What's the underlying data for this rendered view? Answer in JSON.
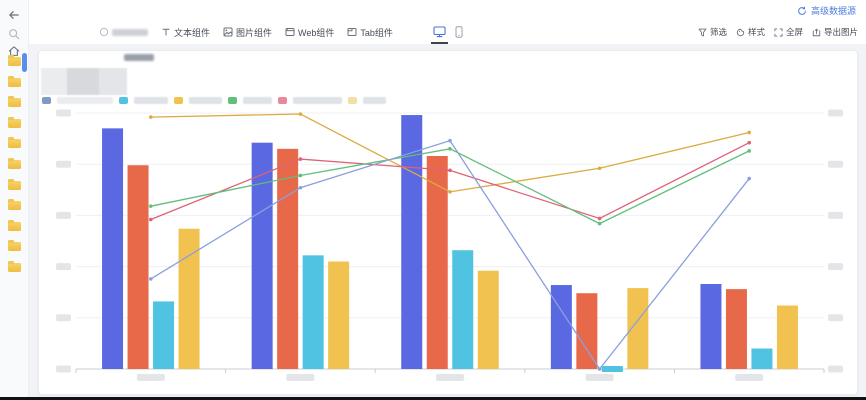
{
  "topbar": {
    "datasource_link": {
      "label": "高级数据源",
      "color": "#4c7bdf"
    }
  },
  "toolbar": {
    "components": [
      {
        "name": "censored-component",
        "label": "",
        "censored": true
      },
      {
        "name": "text-component",
        "label": "文本组件"
      },
      {
        "name": "image-component",
        "label": "图片组件"
      },
      {
        "name": "web-component",
        "label": "Web组件"
      },
      {
        "name": "tab-component",
        "label": "Tab组件"
      }
    ],
    "devices": [
      {
        "name": "desktop-preview",
        "active": true
      },
      {
        "name": "mobile-preview",
        "active": false
      }
    ],
    "actions": [
      {
        "name": "filter",
        "label": "筛选"
      },
      {
        "name": "style",
        "label": "样式"
      },
      {
        "name": "fullscreen",
        "label": "全屏"
      },
      {
        "name": "export-image",
        "label": "导出图片"
      }
    ]
  },
  "sidebar": {
    "folder_count": 11
  },
  "legend": {
    "note": "legend labels are mosaic-blurred in the screenshot",
    "items": [
      {
        "color": "#7f9ac4",
        "label_w": 56,
        "light": true
      },
      {
        "color": "#51c2e0",
        "label_w": 34
      },
      {
        "color": "#f1c250",
        "label_w": 33
      },
      {
        "color": "#61be7b",
        "label_w": 29
      },
      {
        "color": "#e8889a",
        "label_w": 49
      },
      {
        "color": "#f2dfa6",
        "label_w": 23
      }
    ]
  },
  "chart_data": {
    "type": "combo",
    "subtype": "grouped-bars-with-lines",
    "categories": [
      "",
      "",
      "",
      "",
      ""
    ],
    "categories_censored": true,
    "bar_series": [
      {
        "name": "bar-blue",
        "color": "#5a68e2",
        "values": [
          235,
          221,
          248,
          82,
          83
        ]
      },
      {
        "name": "bar-orange",
        "color": "#e8684a",
        "values": [
          199,
          215,
          208,
          74,
          78
        ]
      },
      {
        "name": "bar-cyan",
        "color": "#4fc3e1",
        "values": [
          66,
          111,
          116,
          2,
          20
        ]
      },
      {
        "name": "bar-yellow",
        "color": "#f1c250",
        "values": [
          137,
          105,
          96,
          79,
          62
        ]
      }
    ],
    "line_series": [
      {
        "name": "line-yellow",
        "color": "#dcab41",
        "values": [
          246,
          249,
          173,
          196,
          231
        ]
      },
      {
        "name": "line-red",
        "color": "#df6277",
        "values": [
          146,
          205,
          194,
          147,
          221
        ]
      },
      {
        "name": "line-green",
        "color": "#61be7b",
        "values": [
          159,
          189,
          215,
          142,
          213
        ]
      },
      {
        "name": "line-blue",
        "color": "#8aa0dc",
        "values": [
          88,
          177,
          223,
          0,
          186
        ]
      }
    ],
    "y_axis": {
      "min": 0,
      "max": 250,
      "ticks": 6,
      "labels_censored": true,
      "dual_axis": true
    },
    "grid": true,
    "legend_position": "top-left",
    "values_note": "axis tick labels are blurred; values estimated proportionally on an assumed 0-250 scale"
  }
}
